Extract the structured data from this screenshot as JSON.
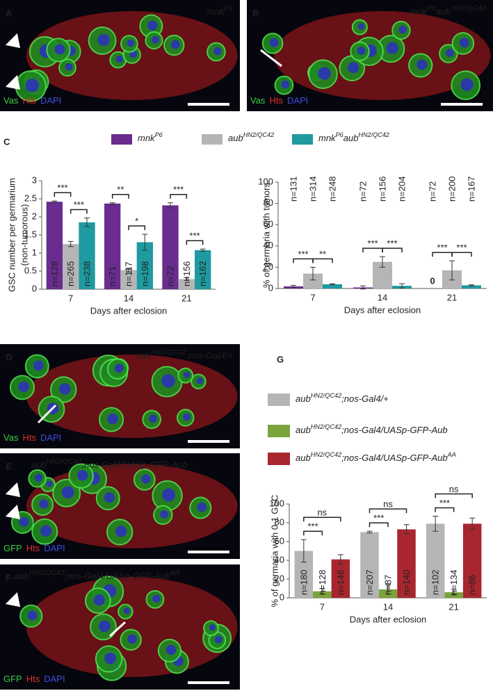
{
  "panels": [
    {
      "letter": "A",
      "genotype": [
        {
          "t": "mnk"
        },
        {
          "t": "P6",
          "sup": true
        }
      ],
      "stains": [
        {
          "text": "Vas",
          "color": "#3fce3f"
        },
        {
          "text": "Hts",
          "color": "#e03030"
        },
        {
          "text": "DAPI",
          "color": "#3c4fe0"
        }
      ]
    },
    {
      "letter": "B",
      "genotype": [
        {
          "t": "mnk"
        },
        {
          "t": "P6",
          "sup": true
        },
        {
          "t": "aub"
        },
        {
          "t": "HN2/QC42",
          "sup": true
        }
      ],
      "stains": [
        {
          "text": "Vas",
          "color": "#3fce3f"
        },
        {
          "text": "Hts",
          "color": "#e03030"
        },
        {
          "text": "DAPI",
          "color": "#3c4fe0"
        }
      ]
    },
    {
      "letter": "D",
      "genotype": [
        {
          "t": "aub"
        },
        {
          "t": "HN2/QC42",
          "sup": true
        },
        {
          "t": ";nos-Gal4/+"
        }
      ],
      "stains": [
        {
          "text": "Vas",
          "color": "#3fce3f"
        },
        {
          "text": "Hts",
          "color": "#e03030"
        },
        {
          "text": "DAPI",
          "color": "#3c4fe0"
        }
      ]
    },
    {
      "letter": "E",
      "genotype": [
        {
          "t": "aub"
        },
        {
          "t": "HN2/QC42",
          "sup": true
        },
        {
          "t": ";nos-Gal4/UASp-GFP-Aub"
        }
      ],
      "stains": [
        {
          "text": "GFP",
          "color": "#3fce3f"
        },
        {
          "text": "Hts",
          "color": "#e03030"
        },
        {
          "text": "DAPI",
          "color": "#3c4fe0"
        }
      ]
    },
    {
      "letter": "F",
      "genotype": [
        {
          "t": "aub"
        },
        {
          "t": "HN2/QC42",
          "sup": true
        },
        {
          "t": ";nos-Gal4/UASp-GFP-Aub"
        },
        {
          "t": "AA",
          "sup": true
        }
      ],
      "stains": [
        {
          "text": "GFP",
          "color": "#3fce3f"
        },
        {
          "text": "Hts",
          "color": "#e03030"
        },
        {
          "text": "DAPI",
          "color": "#3c4fe0"
        }
      ]
    }
  ],
  "chart_data": [
    {
      "type": "bar",
      "panel": "C",
      "ylabel": [
        "GSC number per germarium",
        "(non-tumorous)"
      ],
      "xlabel": "Days after eclosion",
      "categories": [
        "7",
        "14",
        "21"
      ],
      "ylim": [
        0,
        3
      ],
      "yticks": [
        0,
        0.5,
        1,
        1.5,
        2,
        2.5,
        3
      ],
      "series": [
        {
          "name": [
            {
              "t": "mnk"
            },
            {
              "t": "P6",
              "sup": true
            }
          ],
          "color": "#6a2c8f",
          "values": [
            2.42,
            2.37,
            2.32
          ],
          "errors": [
            0.02,
            0.02,
            0.07
          ],
          "n_labels": [
            "n=128",
            "n=71",
            "n=72"
          ]
        },
        {
          "name": [
            {
              "t": "aub"
            },
            {
              "t": "HN2/QC42",
              "sup": true
            }
          ],
          "color": "#b5b5b5",
          "values": [
            1.25,
            0.53,
            0.28
          ],
          "errors": [
            0.07,
            0.05,
            0.04
          ],
          "n_labels": [
            "n=265",
            "n=117",
            "n=156"
          ]
        },
        {
          "name": [
            {
              "t": "mnk"
            },
            {
              "t": "P6",
              "sup": true
            },
            {
              "t": "aub"
            },
            {
              "t": "HN2/QC42",
              "sup": true
            }
          ],
          "color": "#1e9aa0",
          "values": [
            1.85,
            1.3,
            1.08
          ],
          "errors": [
            0.12,
            0.22,
            0.03
          ],
          "n_labels": [
            "n=238",
            "n=198",
            "n=162"
          ]
        }
      ],
      "brackets": [
        {
          "group": 0,
          "from": 0,
          "to": 1,
          "text": "***"
        },
        {
          "group": 0,
          "from": 1,
          "to": 2,
          "text": "***"
        },
        {
          "group": 1,
          "from": 0,
          "to": 1,
          "text": "**"
        },
        {
          "group": 1,
          "from": 1,
          "to": 2,
          "text": "*"
        },
        {
          "group": 2,
          "from": 0,
          "to": 1,
          "text": "***"
        },
        {
          "group": 2,
          "from": 1,
          "to": 2,
          "text": "***"
        }
      ]
    },
    {
      "type": "bar",
      "ylabel": [
        "% of germaria with tumors"
      ],
      "xlabel": "Days after eclosion",
      "categories": [
        "7",
        "14",
        "21"
      ],
      "ylim": [
        0,
        100
      ],
      "yticks": [
        0,
        20,
        40,
        60,
        80,
        100
      ],
      "zero_labels": true,
      "series": [
        {
          "color": "#6a2c8f",
          "values": [
            2,
            1,
            0
          ],
          "errors": [
            1,
            1.5,
            null
          ],
          "n_labels": [
            "n=131",
            "n=72",
            "n=72"
          ]
        },
        {
          "color": "#b5b5b5",
          "values": [
            14,
            25,
            17
          ],
          "errors": [
            6,
            5,
            9
          ],
          "n_labels": [
            "n=314",
            "n=156",
            "n=200"
          ]
        },
        {
          "color": "#1e9aa0",
          "values": [
            4,
            2.5,
            3
          ],
          "errors": [
            0.5,
            2,
            0.5
          ],
          "n_labels": [
            "n=248",
            "n=204",
            "n=167"
          ]
        }
      ],
      "brackets": [
        {
          "group": 0,
          "from": 0,
          "to": 1,
          "text": "***"
        },
        {
          "group": 0,
          "from": 1,
          "to": 2,
          "text": "**"
        },
        {
          "group": 1,
          "from": 0,
          "to": 1,
          "text": "***"
        },
        {
          "group": 1,
          "from": 1,
          "to": 2,
          "text": "***"
        },
        {
          "group": 2,
          "from": 0,
          "to": 1,
          "text": "***"
        },
        {
          "group": 2,
          "from": 1,
          "to": 2,
          "text": "***"
        }
      ]
    },
    {
      "type": "bar",
      "panel": "G",
      "ylabel": [
        "% of germaria with 0-1 GSC"
      ],
      "xlabel": "Days after eclosion",
      "categories": [
        "7",
        "14",
        "21"
      ],
      "ylim": [
        0,
        100
      ],
      "yticks": [
        0,
        20,
        40,
        60,
        80,
        100
      ],
      "series": [
        {
          "name": [
            {
              "t": "aub"
            },
            {
              "t": "HN2/QC42",
              "sup": true
            },
            {
              "t": ";nos-Gal4/+"
            }
          ],
          "color": "#b5b5b5",
          "values": [
            50,
            70,
            79
          ],
          "errors": [
            12,
            1,
            8
          ],
          "n_labels": [
            "n=180",
            "n=207",
            "n=102"
          ]
        },
        {
          "name": [
            {
              "t": "aub"
            },
            {
              "t": "HN2/QC42",
              "sup": true
            },
            {
              "t": ";nos-Gal4/UASp-GFP-Aub"
            }
          ],
          "color": "#7aa33c",
          "values": [
            7,
            9,
            6
          ],
          "errors": [
            3,
            5,
            3
          ],
          "n_labels": [
            "n=128",
            "n=87",
            "n=134"
          ]
        },
        {
          "name": [
            {
              "t": "aub"
            },
            {
              "t": "HN2/QC42",
              "sup": true
            },
            {
              "t": ";nos-Gal4/UASp-GFP-Aub"
            },
            {
              "t": "AA",
              "sup": true
            }
          ],
          "color": "#a8262e",
          "values": [
            41,
            73,
            79
          ],
          "errors": [
            5,
            5,
            6
          ],
          "n_labels": [
            "n=146",
            "n=140",
            "n=86"
          ]
        }
      ],
      "brackets": [
        {
          "group": 0,
          "from": 0,
          "to": 1,
          "text": "***"
        },
        {
          "group": 0,
          "from": 0,
          "to": 2,
          "text": "ns"
        },
        {
          "group": 1,
          "from": 0,
          "to": 1,
          "text": "***"
        },
        {
          "group": 1,
          "from": 0,
          "to": 2,
          "text": "ns"
        },
        {
          "group": 2,
          "from": 0,
          "to": 1,
          "text": "***"
        },
        {
          "group": 2,
          "from": 0,
          "to": 2,
          "text": "ns"
        }
      ]
    }
  ]
}
